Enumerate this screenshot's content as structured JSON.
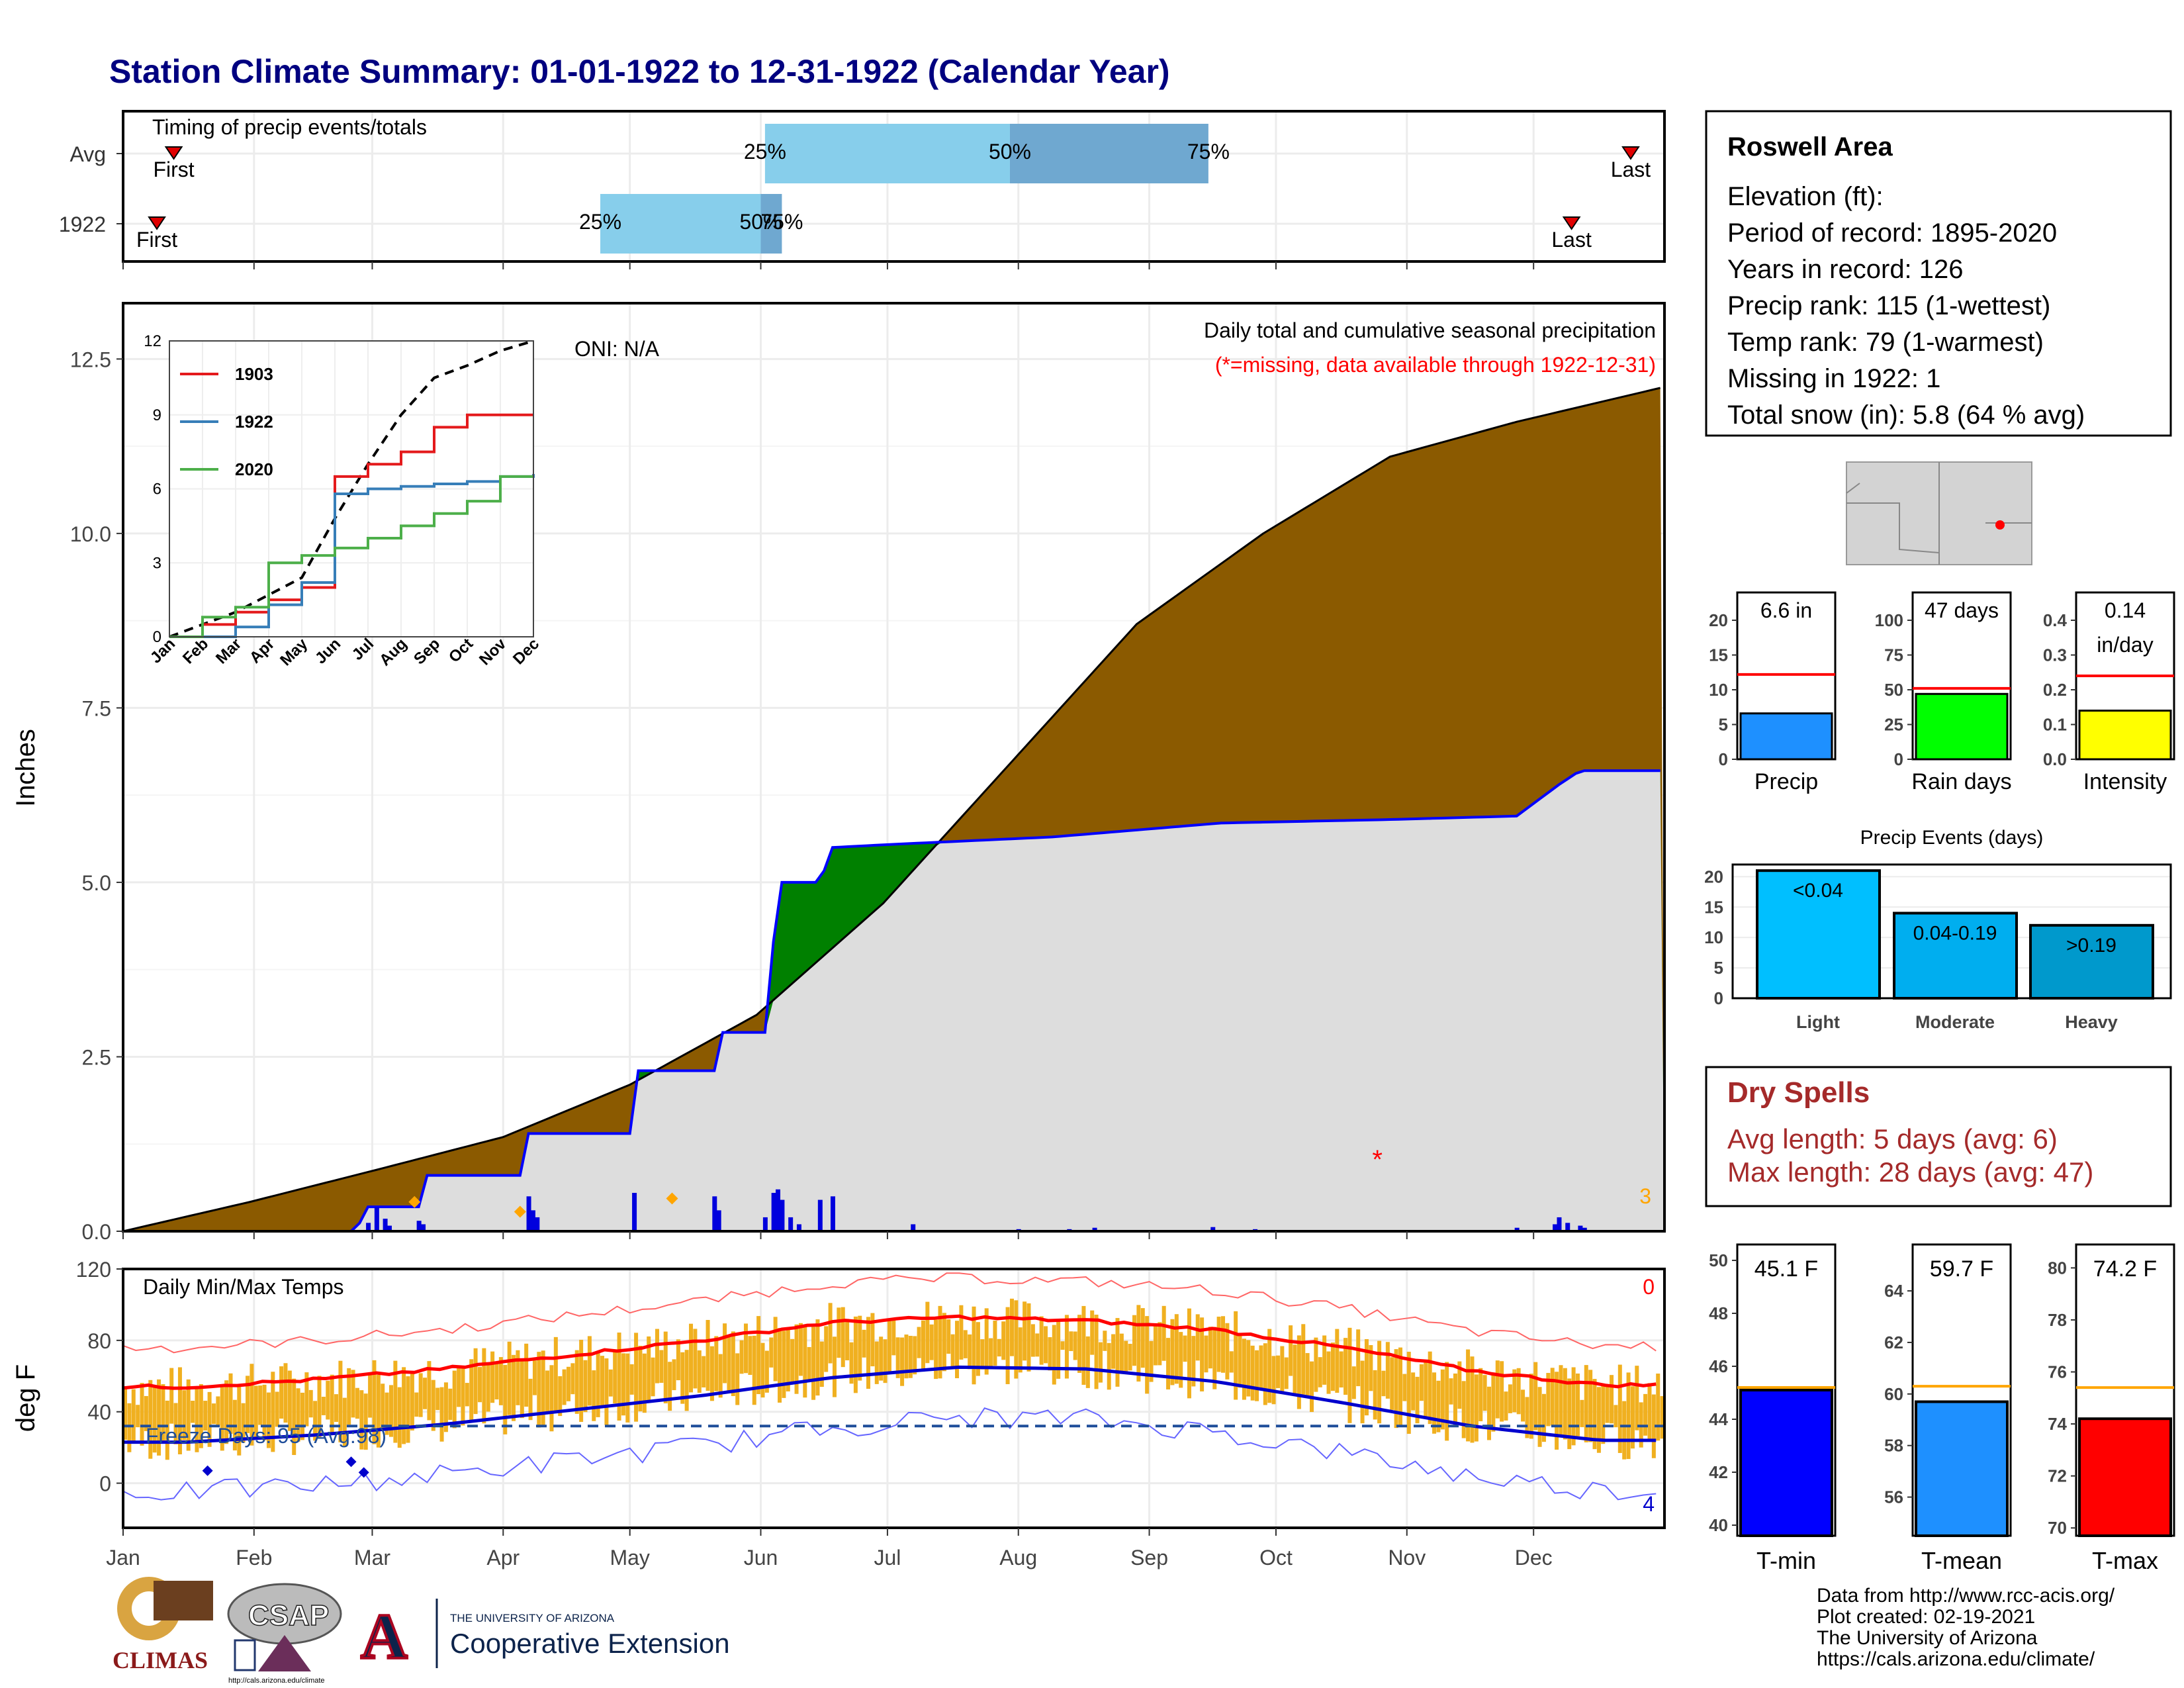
{
  "title": "Station Climate Summary: 01-01-1922 to 12-31-1922 (Calendar Year)",
  "colors": {
    "title": "#000080",
    "avg_fill": "#8B5A00",
    "above_fill": "#008000",
    "actual_fill": "#DDDDDD",
    "actual_line": "#0000FF",
    "q_light": "#87CEEB",
    "q_dark": "#6FA8D0",
    "temp_bar": "#F0B020",
    "tmax_line": "#FF0000",
    "tmin_line": "#0000CD",
    "dry_text": "#A52A2A"
  },
  "timing": {
    "label": "Timing of precip events/totals",
    "rows": [
      "Avg",
      "1922"
    ],
    "first_label": "First",
    "last_label": "Last",
    "pct_labels": [
      "25%",
      "50%",
      "75%"
    ],
    "avg": {
      "first": 12,
      "q25": 152,
      "q50": 210,
      "q75": 257,
      "last": 357
    },
    "y1922": {
      "first": 8,
      "q25": 113,
      "q50": 151,
      "q75": 156,
      "last": 343
    }
  },
  "station": {
    "name": "Roswell Area",
    "lines": [
      "Elevation (ft):",
      "Period of record: 1895-2020",
      "Years in record: 126",
      "Precip rank: 115 (1-wettest)",
      "Temp rank: 79 (1-warmest)",
      "Missing in 1922: 1",
      "Total snow (in): 5.8 (64 % avg)"
    ]
  },
  "precip_chart": {
    "ylabel": "Inches",
    "oni": "ONI: N/A",
    "legend_title": "Daily total and cumulative seasonal precipitation",
    "legend_missing": "(*=missing, data available through 1922-12-31)",
    "missing_mark": "*",
    "snow_count": "3",
    "months": [
      "Jan",
      "Feb",
      "Mar",
      "Apr",
      "May",
      "Jun",
      "Jul",
      "Aug",
      "Sep",
      "Oct",
      "Nov",
      "Dec"
    ],
    "yticks": [
      "0.0",
      "2.5",
      "5.0",
      "7.5",
      "10.0",
      "12.5"
    ]
  },
  "inset": {
    "yticks": [
      "0",
      "3",
      "6",
      "9",
      "12"
    ],
    "months": [
      "Jan",
      "Feb",
      "Mar",
      "Apr",
      "May",
      "Jun",
      "Jul",
      "Aug",
      "Sep",
      "Oct",
      "Nov",
      "Dec"
    ],
    "series": [
      {
        "name": "1903",
        "color": "#E41A1C"
      },
      {
        "name": "1922",
        "color": "#377EB8"
      },
      {
        "name": "2020",
        "color": "#4DAF4A"
      }
    ]
  },
  "temp_chart": {
    "ylabel": "deg F",
    "label": "Daily Min/Max Temps",
    "freeze": "Freeze Days: 95 (Avg:98)",
    "count_top": "0",
    "count_bottom": "4",
    "yticks": [
      "0",
      "40",
      "80",
      "120"
    ],
    "months": [
      "Jan",
      "Feb",
      "Mar",
      "Apr",
      "May",
      "Jun",
      "Jul",
      "Aug",
      "Sep",
      "Oct",
      "Nov",
      "Dec"
    ]
  },
  "summary_bars": [
    {
      "label": "Precip",
      "value_text": "6.6 in",
      "ticks": [
        "0",
        "5",
        "10",
        "15",
        "20"
      ],
      "value": 6.6,
      "avg": 12.2,
      "max": 24,
      "color": "#1E90FF"
    },
    {
      "label": "Rain days",
      "value_text": "47 days",
      "ticks": [
        "0",
        "25",
        "50",
        "75",
        "100"
      ],
      "value": 47,
      "avg": 51,
      "max": 120,
      "color": "#00FF00"
    },
    {
      "label": "Intensity",
      "value_text": "0.14",
      "value_text2": "in/day",
      "ticks": [
        "0.0",
        "0.1",
        "0.2",
        "0.3",
        "0.4"
      ],
      "value": 0.14,
      "avg": 0.24,
      "max": 0.48,
      "color": "#FFFF00"
    }
  ],
  "events": {
    "title": "Precip Events (days)",
    "ticks": [
      "0",
      "5",
      "10",
      "15",
      "20"
    ],
    "bars": [
      {
        "label": "Light",
        "text": "<0.04",
        "value": 21,
        "color": "#00BFFF"
      },
      {
        "label": "Moderate",
        "text": "0.04-0.19",
        "value": 14,
        "color": "#00AEEF"
      },
      {
        "label": "Heavy",
        "text": ">0.19",
        "value": 12,
        "color": "#0099CC"
      }
    ]
  },
  "dry": {
    "title": "Dry Spells",
    "line1": "Avg length: 5 days (avg: 6)",
    "line2": "Max length: 28 days (avg: 47)"
  },
  "temp_bars": [
    {
      "label": "T-min",
      "value_text": "45.1 F",
      "ticks": [
        "40",
        "42",
        "44",
        "46",
        "48",
        "50"
      ],
      "min": 39.6,
      "max": 50.6,
      "value": 45.1,
      "avg": 45.2,
      "color": "#0000FF"
    },
    {
      "label": "T-mean",
      "value_text": "59.7 F",
      "ticks": [
        "56",
        "58",
        "60",
        "62",
        "64"
      ],
      "min": 54.5,
      "max": 65.8,
      "value": 59.7,
      "avg": 60.3,
      "color": "#1E90FF"
    },
    {
      "label": "T-max",
      "value_text": "74.2 F",
      "ticks": [
        "70",
        "72",
        "74",
        "76",
        "78",
        "80"
      ],
      "min": 69.7,
      "max": 80.9,
      "value": 74.2,
      "avg": 75.4,
      "color": "#FF0000"
    }
  ],
  "footer": {
    "lines": [
      "Data from http://www.rcc-acis.org/",
      "Plot created: 02-19-2021",
      "The University of Arizona",
      "https://cals.arizona.edu/climate/"
    ],
    "climas": "CLIMAS",
    "csap": "CSAP",
    "csap_url": "http://cals.arizona.edu/climate",
    "ua_small": "THE UNIVERSITY OF ARIZONA",
    "coop": "Cooperative Extension"
  },
  "chart_data": [
    {
      "type": "area",
      "title": "Daily total and cumulative seasonal precipitation",
      "ylabel": "Inches",
      "ylim": [
        0,
        13.3
      ],
      "x_day_of_year": [
        0,
        30,
        60,
        90,
        120,
        150,
        180,
        210,
        240,
        270,
        300,
        330,
        365
      ],
      "series": [
        {
          "name": "avg",
          "values": [
            0,
            0.42,
            0.88,
            1.35,
            2.1,
            3.1,
            4.7,
            6.7,
            8.7,
            10.0,
            11.1,
            11.6,
            12.1
          ]
        },
        {
          "name": "1922",
          "values": [
            0,
            0,
            0.35,
            1.4,
            2.3,
            5.4,
            5.65,
            5.7,
            5.85,
            5.9,
            5.95,
            6.0,
            6.6
          ]
        }
      ]
    },
    {
      "type": "line",
      "title": "Daily Min/Max Temps",
      "ylabel": "deg F",
      "ylim": [
        -25,
        120
      ],
      "x_month": [
        "Jan",
        "Feb",
        "Mar",
        "Apr",
        "May",
        "Jun",
        "Jul",
        "Aug",
        "Sep",
        "Oct",
        "Nov",
        "Dec"
      ],
      "series": [
        {
          "name": "avg max",
          "values": [
            54,
            58,
            64,
            72,
            80,
            90,
            93,
            91,
            86,
            76,
            63,
            55
          ]
        },
        {
          "name": "avg min",
          "values": [
            23,
            27,
            33,
            41,
            49,
            59,
            65,
            64,
            57,
            45,
            32,
            24
          ]
        }
      ]
    },
    {
      "type": "line",
      "series": [
        {
          "name": "1903",
          "values": [
            0,
            0.5,
            1.0,
            1.5,
            2.0,
            6.5,
            7.0,
            7.5,
            8.5,
            9.0,
            9.0,
            9.0
          ]
        },
        {
          "name": "1922",
          "values": [
            0,
            0,
            0.4,
            1.3,
            2.2,
            5.8,
            6.0,
            6.1,
            6.2,
            6.3,
            6.5,
            6.6
          ]
        },
        {
          "name": "2020",
          "values": [
            0,
            0.8,
            1.2,
            3.0,
            3.3,
            3.6,
            4.0,
            4.5,
            5.0,
            5.5,
            6.5,
            6.5
          ]
        }
      ],
      "ylim": [
        0,
        12
      ]
    }
  ]
}
